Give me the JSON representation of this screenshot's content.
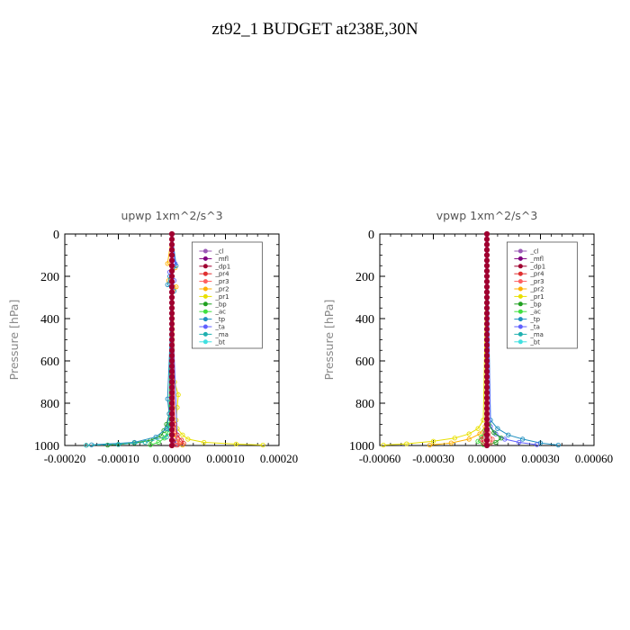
{
  "page_title": "zt92_1  BUDGET at238E,30N",
  "colors": {
    "_cl": "#9b59b6",
    "_mfl": "#800080",
    "_dp1": "#a00030",
    "_pr4": "#e03030",
    "_pr3": "#ff6060",
    "_pr2": "#ffb000",
    "_pr1": "#e8e000",
    "_bp": "#20a020",
    "_ac": "#40e040",
    "_tp": "#2090c0",
    "_ta": "#6060ff",
    "_ma": "#20b0b0",
    "_bt": "#40e0e0"
  },
  "chart_data": [
    {
      "type": "line",
      "title": "upwp   1xm^2/s^3",
      "ylabel": "Pressure [hPa]",
      "xlim": [
        -0.0002,
        0.0002
      ],
      "xticks": [
        "-0.00020",
        "-0.00010",
        "0.00000",
        "0.00010",
        "0.00020"
      ],
      "xtick_values": [
        -0.0002,
        -0.0001,
        0,
        0.0001,
        0.0002
      ],
      "ylim": [
        1000,
        0
      ],
      "yticks": [
        "0",
        "200",
        "400",
        "600",
        "800",
        "1000"
      ],
      "ytick_values": [
        0,
        200,
        400,
        600,
        800,
        1000
      ],
      "legend": [
        "_cl",
        "_mfl",
        "_dp1",
        "_pr4",
        "_pr3",
        "_pr2",
        "_pr1",
        "_bp",
        "_ac",
        "_tp",
        "_ta",
        "_ma",
        "_bt"
      ],
      "series": [
        {
          "name": "_pr1",
          "x": [
            0,
            5e-06,
            1.2e-05,
            1e-05,
            8e-06,
            1e-05,
            2e-05,
            3e-05,
            6e-05,
            0.00012,
            0.00017
          ],
          "y": [
            0,
            700,
            760,
            820,
            880,
            920,
            950,
            970,
            985,
            993,
            998
          ]
        },
        {
          "name": "_pr2",
          "x": [
            0,
            -8e-06,
            6e-06,
            -6e-06,
            8e-06,
            0,
            0,
            4e-06,
            1e-05,
            2e-05
          ],
          "y": [
            0,
            140,
            160,
            220,
            250,
            300,
            900,
            950,
            980,
            998
          ]
        },
        {
          "name": "_bp",
          "x": [
            0,
            -5e-06,
            -1e-05,
            -1.5e-05,
            -2e-05,
            -4e-05,
            -7e-05,
            -0.0001,
            -0.00012
          ],
          "y": [
            0,
            850,
            900,
            930,
            955,
            975,
            988,
            995,
            998
          ]
        },
        {
          "name": "_ac",
          "x": [
            0,
            -4e-06,
            -8e-06,
            -1.4e-05,
            -2.5e-05,
            -4e-05
          ],
          "y": [
            0,
            900,
            940,
            965,
            985,
            997
          ]
        },
        {
          "name": "_tp",
          "x": [
            0,
            8e-06,
            -4e-06,
            -8e-06,
            4e-06,
            0,
            -8e-06,
            -5e-06,
            -1e-05,
            -3e-05,
            -7e-05,
            -0.00015
          ],
          "y": [
            0,
            150,
            200,
            240,
            270,
            300,
            780,
            850,
            920,
            960,
            985,
            997
          ]
        },
        {
          "name": "_ta",
          "x": [
            0,
            6e-06,
            -4e-06,
            4e-06,
            0,
            1e-05,
            6e-06
          ],
          "y": [
            0,
            140,
            180,
            220,
            300,
            950,
            995
          ]
        },
        {
          "name": "_ma",
          "x": [
            0,
            -5e-06,
            -1e-05,
            -5e-05,
            -0.0001,
            -0.00016
          ],
          "y": [
            0,
            920,
            960,
            985,
            995,
            999
          ]
        },
        {
          "name": "_pr4",
          "x": [
            0,
            5e-06,
            1e-05,
            1.8e-05,
            2.2e-05,
            1e-05
          ],
          "y": [
            0,
            900,
            950,
            975,
            990,
            998
          ]
        },
        {
          "name": "_pr3",
          "x": [
            0,
            4e-06,
            1e-05,
            1.4e-05,
            8e-06
          ],
          "y": [
            0,
            940,
            970,
            988,
            998
          ]
        },
        {
          "name": "_dp1",
          "x": [
            0,
            1e-06,
            2e-06,
            0
          ],
          "y": [
            0,
            900,
            980,
            1000
          ]
        },
        {
          "name": "_cl",
          "x": [
            0,
            0
          ],
          "y": [
            0,
            1000
          ]
        },
        {
          "name": "_mfl",
          "x": [
            0,
            0
          ],
          "y": [
            0,
            1000
          ]
        }
      ]
    },
    {
      "type": "line",
      "title": "vpwp   1xm^2/s^3",
      "ylabel": "Pressure [hPa]",
      "xlim": [
        -0.0006,
        0.0006
      ],
      "xticks": [
        "-0.00060",
        "-0.00030",
        "0.00000",
        "0.00030",
        "0.00060"
      ],
      "xtick_values": [
        -0.0006,
        -0.0003,
        0,
        0.0003,
        0.0006
      ],
      "ylim": [
        1000,
        0
      ],
      "yticks": [
        "0",
        "200",
        "400",
        "600",
        "800",
        "1000"
      ],
      "ytick_values": [
        0,
        200,
        400,
        600,
        800,
        1000
      ],
      "legend": [
        "_cl",
        "_mfl",
        "_dp1",
        "_pr4",
        "_pr3",
        "_pr2",
        "_pr1",
        "_bp",
        "_ac",
        "_tp",
        "_ta",
        "_ma",
        "_bt"
      ],
      "series": [
        {
          "name": "_pr1",
          "x": [
            0,
            -2e-05,
            -5e-05,
            -0.0001,
            -0.00018,
            -0.0003,
            -0.00045,
            -0.00058
          ],
          "y": [
            0,
            880,
            920,
            945,
            965,
            980,
            992,
            998
          ]
        },
        {
          "name": "_pr2",
          "x": [
            0,
            -1e-05,
            -4e-05,
            -0.0001,
            -0.0002,
            -0.00032
          ],
          "y": [
            0,
            910,
            945,
            970,
            988,
            998
          ]
        },
        {
          "name": "_tp",
          "x": [
            0,
            2e-05,
            6e-05,
            0.00012,
            0.0002,
            0.0003,
            0.0004
          ],
          "y": [
            0,
            880,
            920,
            950,
            970,
            988,
            998
          ]
        },
        {
          "name": "_ta",
          "x": [
            0,
            2e-05,
            5e-05,
            0.0001,
            0.00018,
            0.00028
          ],
          "y": [
            0,
            910,
            945,
            970,
            985,
            996
          ]
        },
        {
          "name": "_bp",
          "x": [
            0,
            1e-05,
            4e-05,
            8e-05,
            5e-05,
            0
          ],
          "y": [
            0,
            900,
            940,
            965,
            985,
            998
          ]
        },
        {
          "name": "_ac",
          "x": [
            0,
            -1e-05,
            -3e-05,
            -5e-05,
            -2e-05
          ],
          "y": [
            0,
            930,
            960,
            980,
            996
          ]
        },
        {
          "name": "_pr4",
          "x": [
            0,
            -1e-05,
            -3e-05,
            -2e-05,
            0
          ],
          "y": [
            0,
            940,
            970,
            988,
            999
          ]
        },
        {
          "name": "_pr3",
          "x": [
            0,
            1e-05,
            3e-05,
            2e-05,
            0
          ],
          "y": [
            0,
            940,
            970,
            988,
            999
          ]
        },
        {
          "name": "_dp1",
          "x": [
            0,
            0,
            0
          ],
          "y": [
            0,
            960,
            1000
          ]
        },
        {
          "name": "_cl",
          "x": [
            0,
            0
          ],
          "y": [
            0,
            1000
          ]
        },
        {
          "name": "_mfl",
          "x": [
            0,
            0
          ],
          "y": [
            0,
            1000
          ]
        }
      ]
    }
  ]
}
